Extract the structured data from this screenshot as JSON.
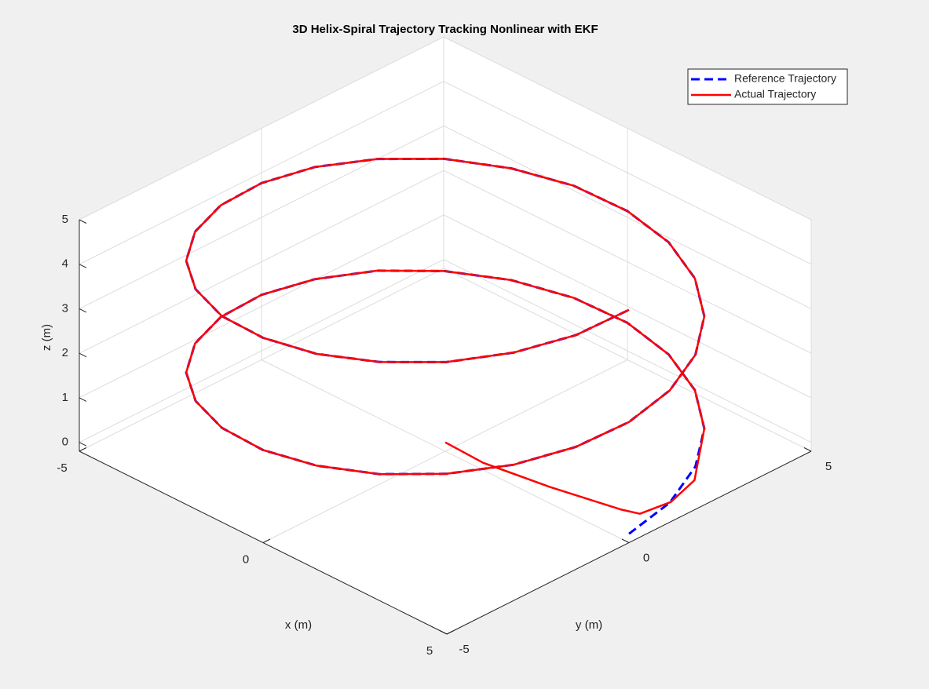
{
  "chart_data": {
    "type": "line3d",
    "title": "3D Helix-Spiral Trajectory Tracking Nonlinear with EKF",
    "xlabel": "x (m)",
    "ylabel": "y (m)",
    "zlabel": "z (m)",
    "xlim": [
      -5,
      5
    ],
    "ylim": [
      -5,
      5
    ],
    "zlim": [
      -0.2,
      5
    ],
    "xticks": [
      -5,
      0,
      5
    ],
    "yticks": [
      -5,
      0,
      5
    ],
    "zticks": [
      0,
      1,
      2,
      3,
      4,
      5
    ],
    "grid": true,
    "legend_position": "northeast",
    "series": [
      {
        "name": "Reference Trajectory",
        "color": "#0000ff",
        "line_style": "dashed",
        "x": [
          5,
          4.83,
          4.33,
          3.54,
          2.5,
          1.29,
          0,
          -1.29,
          -2.5,
          -3.54,
          -4.33,
          -4.83,
          -5,
          -4.83,
          -4.33,
          -3.54,
          -2.5,
          -1.29,
          0,
          1.29,
          2.5,
          3.54,
          4.33,
          4.83,
          5,
          4.83,
          4.33,
          3.54,
          2.5,
          1.29,
          0,
          -1.29,
          -2.5,
          -3.54,
          -4.33,
          -4.83,
          -5,
          -4.83,
          -4.33,
          -3.54,
          -2.5,
          -1.29,
          0,
          1.29,
          2.5,
          3.54,
          4.33,
          4.83,
          5
        ],
        "y": [
          0,
          1.29,
          2.5,
          3.54,
          4.33,
          4.83,
          5,
          4.83,
          4.33,
          3.54,
          2.5,
          1.29,
          0,
          -1.29,
          -2.5,
          -3.54,
          -4.33,
          -4.83,
          -5,
          -4.83,
          -4.33,
          -3.54,
          -2.5,
          -1.29,
          0,
          1.29,
          2.5,
          3.54,
          4.33,
          4.83,
          5,
          4.83,
          4.33,
          3.54,
          2.5,
          1.29,
          0,
          -1.29,
          -2.5,
          -3.54,
          -4.33,
          -4.83,
          -5,
          -4.83,
          -4.33,
          -3.54,
          -2.5,
          -1.29,
          0
        ],
        "z": [
          0,
          0.1,
          0.21,
          0.31,
          0.42,
          0.52,
          0.63,
          0.73,
          0.84,
          0.94,
          1.05,
          1.15,
          1.26,
          1.36,
          1.47,
          1.57,
          1.68,
          1.78,
          1.88,
          1.99,
          2.09,
          2.2,
          2.3,
          2.41,
          2.51,
          2.62,
          2.72,
          2.83,
          2.93,
          3.04,
          3.14,
          3.25,
          3.35,
          3.46,
          3.56,
          3.67,
          3.77,
          3.87,
          3.98,
          4.08,
          4.19,
          4.29,
          4.4,
          4.5,
          4.61,
          4.71,
          4.82,
          4.92,
          5.03
        ]
      },
      {
        "name": "Actual Trajectory",
        "color": "#ff0000",
        "line_style": "solid",
        "x": [
          0,
          1.11,
          2.72,
          4.34,
          4.75,
          4.95,
          4.8,
          3.54,
          2.5,
          1.29,
          0,
          -1.29,
          -2.5,
          -3.54,
          -4.33,
          -4.83,
          -5,
          -4.83,
          -4.33,
          -3.54,
          -2.5,
          -1.29,
          0,
          1.29,
          2.5,
          3.54,
          4.33,
          4.83,
          5,
          4.83,
          4.33,
          3.54,
          2.5,
          1.29,
          0,
          -1.29,
          -2.5,
          -3.54,
          -4.33,
          -4.83,
          -5,
          -4.83,
          -4.33,
          -3.54,
          -2.5,
          -1.29,
          0,
          1.29,
          2.5,
          3.54,
          4.33,
          4.83,
          5
        ],
        "y": [
          0,
          -0.08,
          0.13,
          0.43,
          0.55,
          1.2,
          2.0,
          3.54,
          4.33,
          4.83,
          5,
          4.83,
          4.33,
          3.54,
          2.5,
          1.29,
          0,
          -1.29,
          -2.5,
          -3.54,
          -4.33,
          -4.83,
          -5,
          -4.83,
          -4.33,
          -3.54,
          -2.5,
          -1.29,
          0,
          1.29,
          2.5,
          3.54,
          4.33,
          4.83,
          5,
          4.83,
          4.33,
          3.54,
          2.5,
          1.29,
          0,
          -1.29,
          -2.5,
          -3.54,
          -4.33,
          -4.83,
          -5,
          -4.83,
          -4.33,
          -3.54,
          -2.5,
          -1.29,
          0
        ],
        "z": [
          0,
          0.03,
          0.06,
          0.1,
          0.12,
          0.2,
          0.3,
          0.31,
          0.42,
          0.52,
          0.63,
          0.73,
          0.84,
          0.94,
          1.05,
          1.15,
          1.26,
          1.36,
          1.47,
          1.57,
          1.68,
          1.78,
          1.88,
          1.99,
          2.09,
          2.2,
          2.3,
          2.41,
          2.51,
          2.62,
          2.72,
          2.83,
          2.93,
          3.04,
          3.14,
          3.25,
          3.35,
          3.46,
          3.56,
          3.67,
          3.77,
          3.87,
          3.98,
          4.08,
          4.19,
          4.29,
          4.4,
          4.5,
          4.61,
          4.71,
          4.82,
          4.92,
          5.03
        ]
      }
    ]
  }
}
